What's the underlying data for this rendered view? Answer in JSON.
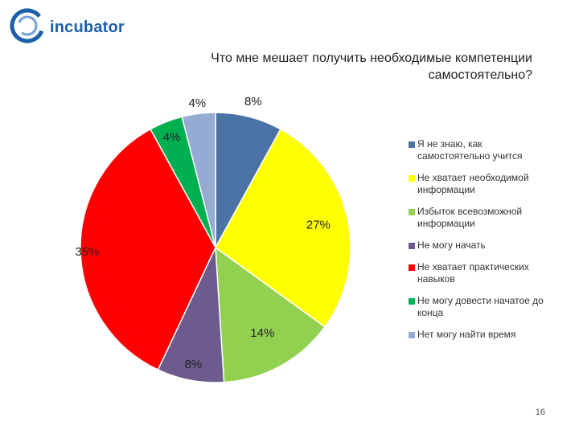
{
  "logo": {
    "text": "incubator"
  },
  "page_number": "16",
  "colors": {
    "brand": "#1a5fa8",
    "series": [
      "#4a72a4",
      "#ffff00",
      "#92d050",
      "#6d5b8e",
      "#ff0000",
      "#00b050",
      "#95abd3"
    ]
  },
  "chart_data": {
    "type": "pie",
    "title": "Что мне мешает получить необходимые компетенции самостоятельно?",
    "legend_position": "right",
    "slices": [
      {
        "label": "Я не знаю, как самостоятельно учится",
        "value": 8,
        "value_label": "8%",
        "color": "#4a72a4"
      },
      {
        "label": "Не хватает необходимой информации",
        "value": 27,
        "value_label": "27%",
        "color": "#ffff00"
      },
      {
        "label": "Избыток всевозможной информации",
        "value": 14,
        "value_label": "14%",
        "color": "#92d050"
      },
      {
        "label": "Не могу начать",
        "value": 8,
        "value_label": "8%",
        "color": "#6d5b8e"
      },
      {
        "label": "Не хватает практических навыков",
        "value": 35,
        "value_label": "35%",
        "color": "#ff0000"
      },
      {
        "label": "Не могу довести начатое до конца",
        "value": 4,
        "value_label": "4%",
        "color": "#00b050"
      },
      {
        "label": "Нет могу найти время",
        "value": 4,
        "value_label": "4%",
        "color": "#95abd3"
      }
    ]
  }
}
